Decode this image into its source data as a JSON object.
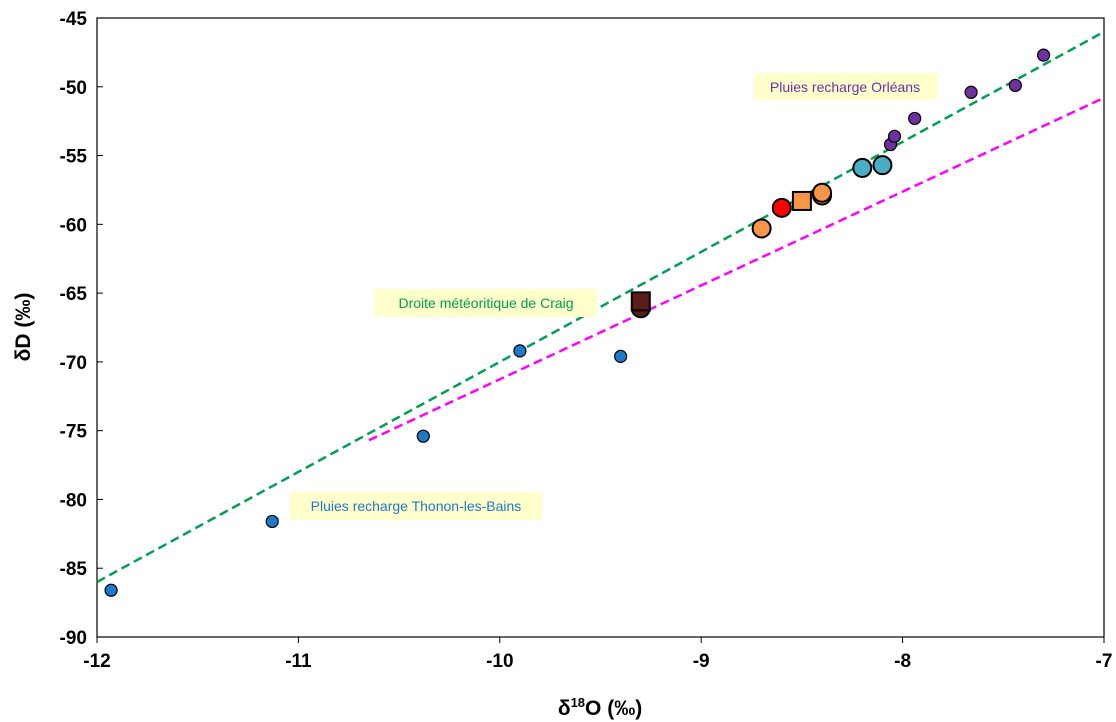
{
  "chart_data": {
    "type": "scatter",
    "title": "",
    "xlabel": "δ18O (‰)",
    "ylabel": "δD (‰)",
    "xlim": [
      -12,
      -7
    ],
    "ylim": [
      -90,
      -45
    ],
    "x_ticks": [
      -12,
      -11,
      -10,
      -9,
      -8,
      -7
    ],
    "y_ticks": [
      -45,
      -50,
      -55,
      -60,
      -65,
      -70,
      -75,
      -80,
      -85,
      -90
    ],
    "grid": false,
    "legend": "none",
    "series": [
      {
        "marker": "circle-small",
        "color": "#1f78c8",
        "points": [
          [
            -11.93,
            -86.6
          ],
          [
            -11.13,
            -81.6
          ],
          [
            -10.38,
            -75.4
          ],
          [
            -9.9,
            -69.2
          ],
          [
            -9.4,
            -69.6
          ]
        ]
      },
      {
        "marker": "circle-small",
        "color": "#7030a0",
        "points": [
          [
            -8.06,
            -54.2
          ],
          [
            -8.04,
            -53.6
          ],
          [
            -7.94,
            -52.3
          ],
          [
            -7.66,
            -50.4
          ],
          [
            -7.44,
            -49.9
          ],
          [
            -7.3,
            -47.7
          ]
        ]
      },
      {
        "marker": "circle",
        "color": "#4bacc6",
        "points": [
          [
            -8.2,
            -55.9
          ],
          [
            -8.1,
            -55.7
          ]
        ]
      },
      {
        "marker": "circle",
        "color": "#f79646",
        "points": [
          [
            -8.7,
            -60.3
          ],
          [
            -8.4,
            -57.9
          ],
          [
            -8.4,
            -57.7
          ]
        ]
      },
      {
        "marker": "square",
        "color": "#f79646",
        "points": [
          [
            -8.5,
            -58.3
          ]
        ]
      },
      {
        "marker": "circle",
        "color": "#ff0000",
        "points": [
          [
            -8.6,
            -58.8
          ]
        ]
      },
      {
        "marker": "circle",
        "color": "#5a1e16",
        "points": [
          [
            -9.3,
            -66.1
          ]
        ]
      },
      {
        "marker": "square",
        "color": "#5a1e16",
        "points": [
          [
            -9.3,
            -65.6
          ]
        ]
      }
    ],
    "lines": [
      {
        "color": "#00a050",
        "dash": true,
        "from": [
          -12,
          -86
        ],
        "to": [
          -7,
          -46
        ]
      },
      {
        "color": "#ff00ff",
        "dash": true,
        "from": [
          -10.65,
          -75.7
        ],
        "to": [
          -7,
          -50.8
        ]
      }
    ],
    "annotations": [
      {
        "text": "Pluies recharge Orléans",
        "color": "#7030a0",
        "background": "#ffffcc"
      },
      {
        "text": "Droite météoritique de Craig",
        "color": "#00a050",
        "background": "#ffffcc"
      },
      {
        "text": "Pluies recharge Thonon-les-Bains",
        "color": "#1f78c8",
        "background": "#ffffcc"
      }
    ]
  }
}
